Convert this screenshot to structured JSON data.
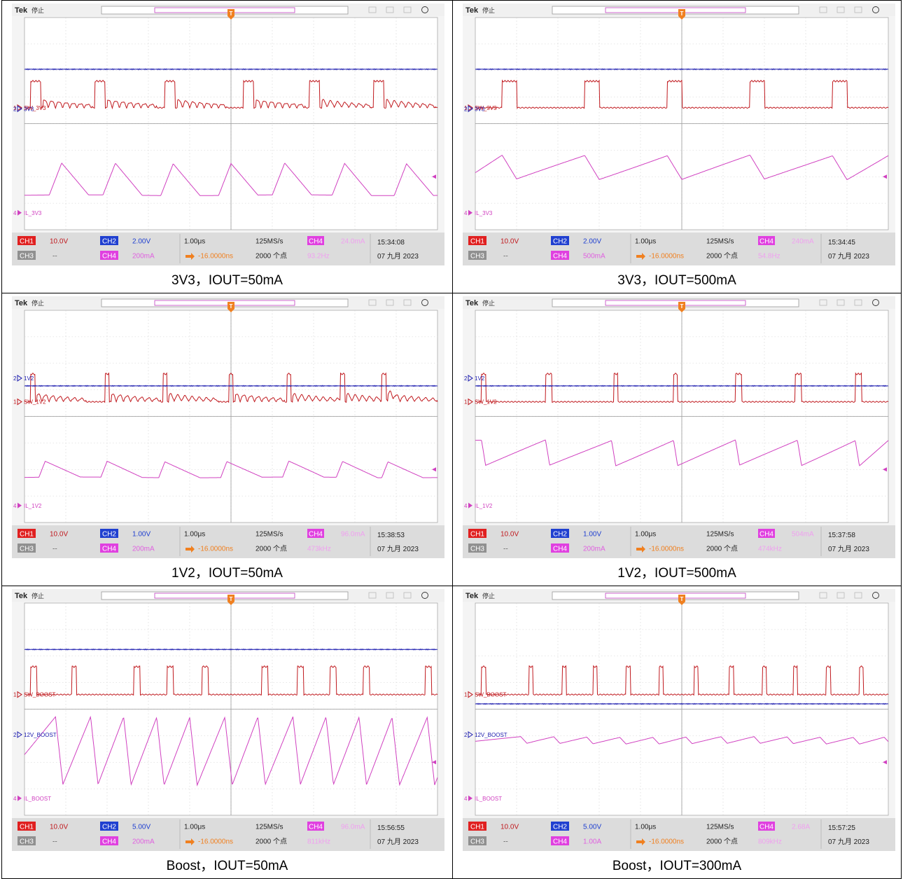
{
  "panels": [
    {
      "caption": "3V3，IOUT=50mA",
      "header": {
        "brand": "Tek",
        "state": "停止"
      },
      "markers": {
        "trigger": "T",
        "ch1": "1",
        "ch2": "2",
        "ch4": "4"
      },
      "labels": {
        "ch1": "SW_3V3",
        "ch2": "3V3",
        "ch4": "IL_3V3"
      },
      "footer": {
        "ch1_btn": "CH1",
        "ch1_scale": "10.0V",
        "ch2_btn": "CH2",
        "ch2_scale": "2.00V",
        "ch3_btn": "CH3",
        "ch3_scale": "--",
        "ch4_btn": "CH4",
        "ch4_scale": "200mA",
        "timebase": "1.00μs",
        "trig_pos": "-16.0000ns",
        "sample_rate": "125MS/s",
        "record_length": "2000 个点",
        "meas_btn": "CH4",
        "meas_level": "24.0mA",
        "freq": "93.2Hz",
        "time": "15:34:08",
        "date": "07 九月 2023"
      },
      "chart_data": {
        "type": "line",
        "title": "",
        "x_unit": "μs",
        "x_div": 1.0,
        "x_range": [
          -5,
          5
        ],
        "series": [
          {
            "name": "SW_3V3",
            "channel": "CH1",
            "color": "#c0191e",
            "kind": "square",
            "pulses": [
              [
                -4.85,
                -4.6
              ],
              [
                -3.3,
                -3.05
              ],
              [
                -1.6,
                -1.35
              ],
              [
                0.3,
                0.55
              ],
              [
                1.9,
                2.15
              ],
              [
                3.45,
                3.7
              ]
            ],
            "ringing": true,
            "low_div": 0.6,
            "high_div": 1.6
          },
          {
            "name": "3V3",
            "channel": "CH2",
            "color": "#2020b0",
            "kind": "flat",
            "level_div": 2.05
          },
          {
            "name": "IL_3V3",
            "channel": "CH4",
            "color": "#d040c0",
            "kind": "triangle",
            "peaks": [
              -4.1,
              -2.8,
              -1.4,
              0,
              1.3,
              2.75,
              4.25
            ],
            "rise_us": 0.3,
            "fall_us": 0.65,
            "base_div": 2.7,
            "peak_div": 1.5
          }
        ]
      }
    },
    {
      "caption": "3V3，IOUT=500mA",
      "header": {
        "brand": "Tek",
        "state": "停止"
      },
      "markers": {
        "trigger": "T",
        "ch1": "1",
        "ch2": "2",
        "ch4": "4"
      },
      "labels": {
        "ch1": "SW_3V3",
        "ch2": "3V3",
        "ch4": "IL_3V3"
      },
      "footer": {
        "ch1_btn": "CH1",
        "ch1_scale": "10.0V",
        "ch2_btn": "CH2",
        "ch2_scale": "2.00V",
        "ch3_btn": "CH3",
        "ch3_scale": "--",
        "ch4_btn": "CH4",
        "ch4_scale": "500mA",
        "timebase": "1.00μs",
        "trig_pos": "-16.0000ns",
        "sample_rate": "125MS/s",
        "record_length": "2000 个点",
        "meas_btn": "CH4",
        "meas_level": "240mA",
        "freq": "54.8Hz",
        "time": "15:34:45",
        "date": "07 九月 2023"
      },
      "chart_data": {
        "type": "line",
        "title": "",
        "x_unit": "μs",
        "x_div": 1.0,
        "x_range": [
          -5,
          5
        ],
        "series": [
          {
            "name": "SW_3V3",
            "channel": "CH1",
            "color": "#c0191e",
            "kind": "square",
            "pulses": [
              [
                -4.35,
                -4.0
              ],
              [
                -2.35,
                -2.0
              ],
              [
                -0.35,
                0.0
              ],
              [
                1.65,
                2.0
              ],
              [
                3.65,
                4.0
              ]
            ],
            "ringing": false,
            "low_div": 0.6,
            "high_div": 1.6
          },
          {
            "name": "3V3",
            "channel": "CH2",
            "color": "#2020b0",
            "kind": "flat",
            "level_div": 2.05
          },
          {
            "name": "IL_3V3",
            "channel": "CH4",
            "color": "#d040c0",
            "kind": "sawtooth",
            "peaks": [
              -4.0,
              -2.0,
              0.0,
              2.0,
              4.0
            ],
            "rise_us": 0.35,
            "start_div": 1.85,
            "low_div": 1.2,
            "high_div": 2.1
          }
        ]
      }
    },
    {
      "caption": "1V2，IOUT=50mA",
      "header": {
        "brand": "Tek",
        "state": "停止"
      },
      "markers": {
        "trigger": "T",
        "ch1": "1",
        "ch2": "2",
        "ch4": "4"
      },
      "labels": {
        "ch1": "SW_1V2",
        "ch2": "1V2",
        "ch4": "IL_1V2"
      },
      "footer": {
        "ch1_btn": "CH1",
        "ch1_scale": "10.0V",
        "ch2_btn": "CH2",
        "ch2_scale": "1.00V",
        "ch3_btn": "CH3",
        "ch3_scale": "--",
        "ch4_btn": "CH4",
        "ch4_scale": "200mA",
        "timebase": "1.00μs",
        "trig_pos": "-16.0000ns",
        "sample_rate": "125MS/s",
        "record_length": "2000 个点",
        "meas_btn": "CH4",
        "meas_level": "96.0mA",
        "freq": "473kHz",
        "time": "15:38:53",
        "date": "07 九月 2023"
      },
      "chart_data": {
        "type": "line",
        "title": "",
        "x_unit": "μs",
        "x_div": 1.0,
        "x_range": [
          -5,
          5
        ],
        "series": [
          {
            "name": "SW_1V2",
            "channel": "CH1",
            "color": "#c0191e",
            "kind": "square",
            "pulses": [
              [
                -4.85,
                -4.75
              ],
              [
                -3.05,
                -2.95
              ],
              [
                -1.65,
                -1.55
              ],
              [
                -0.05,
                0.05
              ],
              [
                1.35,
                1.45
              ],
              [
                2.65,
                2.75
              ],
              [
                3.65,
                3.75
              ]
            ],
            "ringing": true,
            "low_div": 0.55,
            "high_div": 1.6
          },
          {
            "name": "1V2",
            "channel": "CH2",
            "color": "#2020b0",
            "kind": "flat",
            "level_div": 1.15
          },
          {
            "name": "IL_1V2",
            "channel": "CH4",
            "color": "#d040c0",
            "kind": "triangle",
            "peaks": [
              -4.5,
              -3.0,
              -1.6,
              -0.1,
              1.4,
              2.7,
              3.8
            ],
            "rise_us": 0.15,
            "fall_us": 0.85,
            "base_div": 2.3,
            "peak_div": 1.7
          }
        ]
      }
    },
    {
      "caption": "1V2，IOUT=500mA",
      "header": {
        "brand": "Tek",
        "state": "停止"
      },
      "markers": {
        "trigger": "T",
        "ch1": "1",
        "ch2": "2",
        "ch4": "4"
      },
      "labels": {
        "ch1": "SW_1V2",
        "ch2": "1V2",
        "ch4": "IL_1V2"
      },
      "footer": {
        "ch1_btn": "CH1",
        "ch1_scale": "10.0V",
        "ch2_btn": "CH2",
        "ch2_scale": "1.00V",
        "ch3_btn": "CH3",
        "ch3_scale": "--",
        "ch4_btn": "CH4",
        "ch4_scale": "200mA",
        "timebase": "1.00μs",
        "trig_pos": "-16.0000ns",
        "sample_rate": "125MS/s",
        "record_length": "2000 个点",
        "meas_btn": "CH4",
        "meas_level": "504mA",
        "freq": "474kHz",
        "time": "15:37:58",
        "date": "07 九月 2023"
      },
      "chart_data": {
        "type": "line",
        "title": "",
        "x_unit": "μs",
        "x_div": 1.0,
        "x_range": [
          -5,
          5
        ],
        "series": [
          {
            "name": "SW_1V2",
            "channel": "CH1",
            "color": "#c0191e",
            "kind": "square",
            "pulses": [
              [
                -4.85,
                -4.75
              ],
              [
                -3.3,
                -3.15
              ],
              [
                -1.65,
                -1.55
              ],
              [
                -0.2,
                -0.1
              ],
              [
                1.3,
                1.45
              ],
              [
                2.75,
                2.9
              ],
              [
                4.2,
                4.35
              ]
            ],
            "ringing": false,
            "low_div": 0.55,
            "high_div": 1.6
          },
          {
            "name": "1V2",
            "channel": "CH2",
            "color": "#2020b0",
            "kind": "flat",
            "level_div": 1.15
          },
          {
            "name": "IL_1V2",
            "channel": "CH4",
            "color": "#d040c0",
            "kind": "sawtooth",
            "peaks": [
              -4.75,
              -3.2,
              -1.6,
              -0.1,
              1.4,
              2.9,
              4.3
            ],
            "rise_us": 0.1,
            "start_div": 0.9,
            "low_div": 0.9,
            "high_div": 1.85
          }
        ]
      }
    },
    {
      "caption": "Boost，IOUT=50mA",
      "header": {
        "brand": "Tek",
        "state": "停止"
      },
      "markers": {
        "trigger": "T",
        "ch1": "1",
        "ch2": "2",
        "ch4": "4"
      },
      "labels": {
        "ch1": "SW_BOOST",
        "ch2": "12V_BOOST",
        "ch4": "IL_BOOST"
      },
      "footer": {
        "ch1_btn": "CH1",
        "ch1_scale": "10.0V",
        "ch2_btn": "CH2",
        "ch2_scale": "5.00V",
        "ch3_btn": "CH3",
        "ch3_scale": "--",
        "ch4_btn": "CH4",
        "ch4_scale": "200mA",
        "timebase": "1.00μs",
        "trig_pos": "-16.0000ns",
        "sample_rate": "125MS/s",
        "record_length": "2000 个点",
        "meas_btn": "CH4",
        "meas_level": "96.0mA",
        "freq": "811kHz",
        "time": "15:56:55",
        "date": "07 九月 2023"
      },
      "chart_data": {
        "type": "line",
        "title": "",
        "x_unit": "μs",
        "x_div": 1.0,
        "x_range": [
          -5,
          5
        ],
        "series": [
          {
            "name": "SW_BOOST",
            "channel": "CH1",
            "color": "#c0191e",
            "kind": "square",
            "pulses": [
              [
                -4.85,
                -4.7
              ],
              [
                -3.85,
                -3.75
              ],
              [
                -2.35,
                -2.2
              ],
              [
                -1.55,
                -1.4
              ],
              [
                -0.7,
                -0.55
              ],
              [
                0.75,
                0.9
              ],
              [
                1.6,
                1.75
              ],
              [
                2.4,
                2.55
              ],
              [
                3.2,
                3.35
              ],
              [
                4.7,
                4.85
              ]
            ],
            "ringing": false,
            "low_div": 0.55,
            "high_div": 1.6
          },
          {
            "name": "12V_BOOST",
            "channel": "CH2",
            "color": "#2020b0",
            "kind": "flat",
            "level_div": 2.25
          },
          {
            "name": "IL_BOOST",
            "channel": "CH4",
            "color": "#d040c0",
            "kind": "sawtooth_up",
            "peaks": [
              -4.25,
              -3.4,
              -2.6,
              -1.8,
              -1.0,
              -0.15,
              0.65,
              1.5,
              2.3,
              3.1,
              3.9,
              4.75
            ],
            "fall_us": 0.18,
            "low_div": 2.85,
            "high_div": 0.3
          }
        ]
      }
    },
    {
      "caption": "Boost，IOUT=300mA",
      "header": {
        "brand": "Tek",
        "state": "停止"
      },
      "markers": {
        "trigger": "T",
        "ch1": "1",
        "ch2": "2",
        "ch4": "4"
      },
      "labels": {
        "ch1": "SW_BOOST",
        "ch2": "12V_BOOST",
        "ch4": "IL_BOOST"
      },
      "footer": {
        "ch1_btn": "CH1",
        "ch1_scale": "10.0V",
        "ch2_btn": "CH2",
        "ch2_scale": "5.00V",
        "ch3_btn": "CH3",
        "ch3_scale": "--",
        "ch4_btn": "CH4",
        "ch4_scale": "1.00A",
        "timebase": "1.00μs",
        "trig_pos": "-16.0000ns",
        "sample_rate": "125MS/s",
        "record_length": "2000 个点",
        "meas_btn": "CH4",
        "meas_level": "2.68A",
        "freq": "809kHz",
        "time": "15:57:25",
        "date": "07 九月 2023"
      },
      "chart_data": {
        "type": "line",
        "title": "",
        "x_unit": "μs",
        "x_div": 1.0,
        "x_range": [
          -5,
          5
        ],
        "series": [
          {
            "name": "SW_BOOST",
            "channel": "CH1",
            "color": "#c0191e",
            "kind": "square",
            "pulses": [
              [
                -4.85,
                -4.75
              ],
              [
                -3.7,
                -3.6
              ],
              [
                -2.9,
                -2.8
              ],
              [
                -2.15,
                -2.05
              ],
              [
                -1.35,
                -1.25
              ],
              [
                -0.55,
                -0.45
              ],
              [
                0.3,
                0.4
              ],
              [
                1.15,
                1.25
              ],
              [
                1.95,
                2.05
              ],
              [
                2.7,
                2.8
              ],
              [
                3.5,
                3.6
              ],
              [
                4.3,
                4.4
              ]
            ],
            "ringing": false,
            "low_div": 0.55,
            "high_div": 1.6
          },
          {
            "name": "12V_BOOST",
            "channel": "CH2",
            "color": "#2020b0",
            "kind": "flat",
            "level_div": 0.2
          },
          {
            "name": "IL_BOOST",
            "channel": "CH4",
            "color": "#d040c0",
            "kind": "sawtooth_up",
            "peaks": [
              -3.9,
              -3.1,
              -2.3,
              -1.5,
              -0.7,
              0.1,
              0.95,
              1.75,
              2.55,
              3.35,
              4.15,
              4.9
            ],
            "fall_us": 0.15,
            "low_div": 1.3,
            "high_div": 1.05
          }
        ]
      }
    }
  ]
}
